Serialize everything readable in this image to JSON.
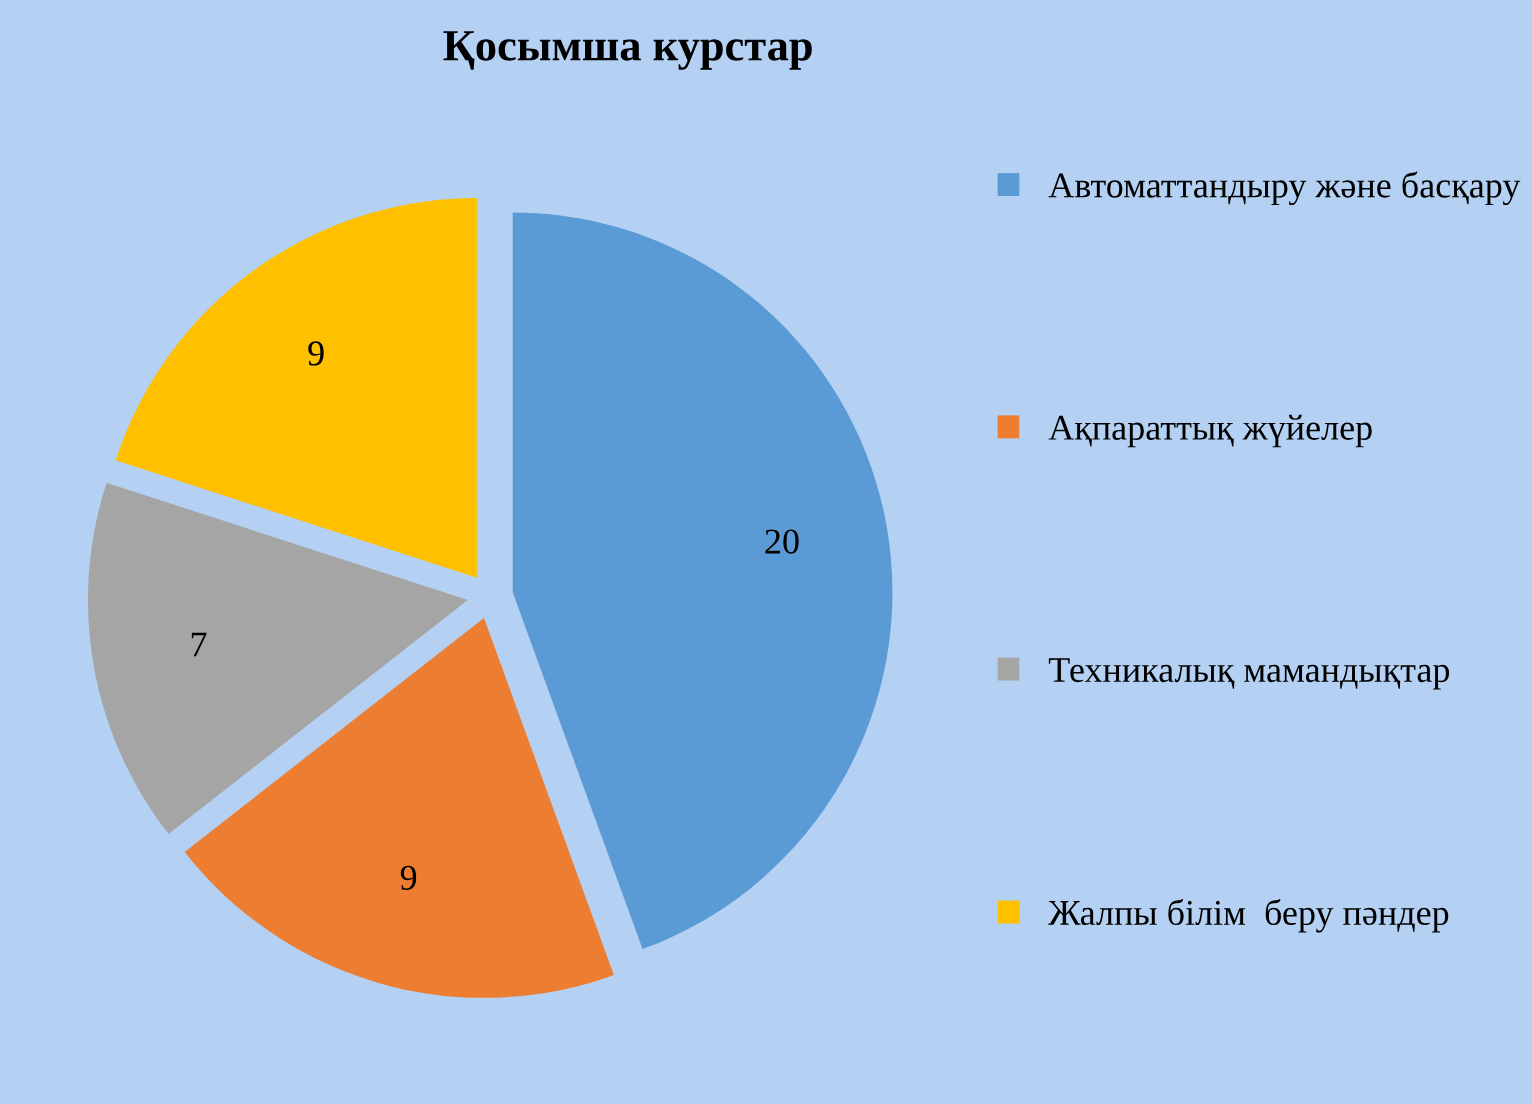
{
  "chart_data": {
    "type": "pie",
    "title": "Қосымша курстар",
    "categories": [
      "Автоматтандыру және басқару",
      "Ақпараттық жүйелер",
      "Техникалық мамандықтар",
      "Жалпы білім  беру пәндер"
    ],
    "values": [
      20,
      9,
      7,
      9
    ],
    "colors": [
      "#5b9bd5",
      "#ed7d31",
      "#a5a5a5",
      "#ffc000"
    ],
    "data_labels": true,
    "legend": "right"
  }
}
